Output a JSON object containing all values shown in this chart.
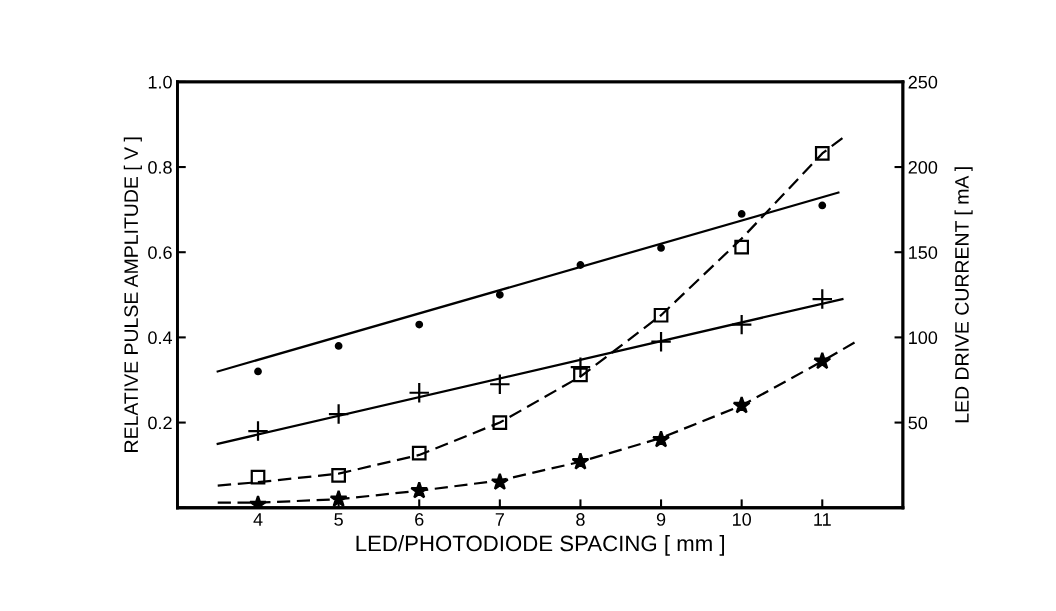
{
  "chart_data": {
    "type": "scatter",
    "xlabel": "LED/PHOTODIODE SPACING [ mm ]",
    "ylabel": "RELATIVE PULSE AMPLITUDE [ V ]",
    "y2label": "LED DRIVE CURRENT [ mA ]",
    "xlim": [
      3,
      12
    ],
    "xticks": [
      4,
      5,
      6,
      7,
      8,
      9,
      10,
      11
    ],
    "ylim": [
      0,
      1.0
    ],
    "yticks": [
      {
        "value": 0,
        "label": null
      },
      0.2,
      0.4,
      0.6,
      0.8,
      {
        "value": 1.0,
        "label": "1.0"
      }
    ],
    "y2lim": [
      0,
      250
    ],
    "y2ticks": [
      {
        "value": 0,
        "label": null
      },
      50,
      100,
      150,
      200,
      250
    ],
    "grid": false,
    "legend": false,
    "series": [
      {
        "marker": "circle",
        "color": "#000000",
        "x": [
          4,
          5,
          6,
          7,
          8,
          9,
          10,
          11
        ],
        "values": [
          0.32,
          0.38,
          0.43,
          0.5,
          0.57,
          0.61,
          0.69,
          0.71
        ]
      },
      {
        "type": "line",
        "marker": "none",
        "line_style": "solid",
        "color": "#000000",
        "x": [
          3.5,
          11.2
        ],
        "values": [
          0.32,
          0.74
        ]
      },
      {
        "marker": "cross",
        "color": "#000000",
        "x": [
          4,
          5,
          6,
          7,
          8,
          9,
          10,
          11
        ],
        "values": [
          0.18,
          0.22,
          0.27,
          0.29,
          0.33,
          0.39,
          0.43,
          0.49
        ]
      },
      {
        "type": "line",
        "marker": "none",
        "line_style": "solid",
        "color": "#000000",
        "x": [
          3.5,
          11.25
        ],
        "values": [
          0.15,
          0.49
        ]
      },
      {
        "marker": "square",
        "axis": "y2",
        "color": "#000000",
        "x": [
          4,
          5,
          6,
          7,
          8,
          9,
          10,
          11
        ],
        "values": [
          18,
          19,
          32,
          50,
          78,
          113,
          153,
          208
        ]
      },
      {
        "type": "line",
        "marker": "none",
        "line_style": "dashed",
        "axis": "y2",
        "color": "#000000",
        "x": [
          3.5,
          4,
          5,
          6,
          7,
          8,
          9,
          10,
          11,
          11.25
        ],
        "values": [
          13,
          15,
          20,
          31,
          50,
          77,
          113,
          158,
          208,
          217
        ]
      },
      {
        "marker": "star",
        "axis": "y2",
        "color": "#000000",
        "x": [
          4,
          5,
          6,
          7,
          8,
          9,
          10,
          11
        ],
        "values": [
          2,
          5,
          10,
          15,
          27,
          40,
          60,
          86
        ]
      },
      {
        "type": "line",
        "marker": "none",
        "line_style": "dashed",
        "axis": "y2",
        "color": "#000000",
        "x": [
          3.5,
          4,
          5,
          6,
          7,
          8,
          9,
          10,
          11,
          11.4
        ],
        "values": [
          3,
          3,
          5,
          10,
          16,
          27,
          41,
          60,
          86,
          97
        ]
      }
    ]
  }
}
